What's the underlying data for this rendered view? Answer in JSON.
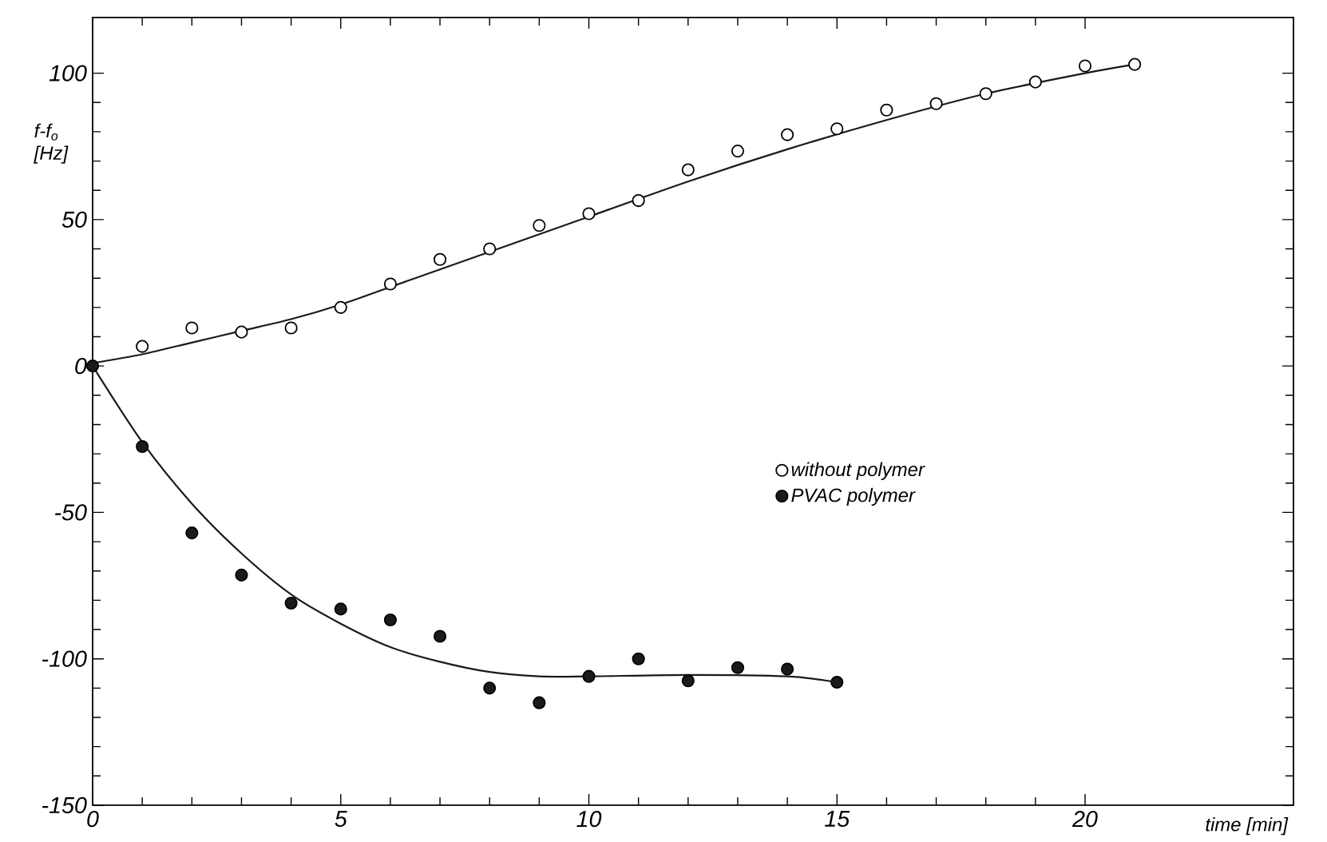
{
  "chart_data": {
    "type": "scatter",
    "xlabel": "time [min]",
    "ylabel": "f-f$_{o}$ [Hz]",
    "xlim": [
      0,
      24.2
    ],
    "ylim": [
      -150,
      119
    ],
    "xticks": [
      0,
      5,
      10,
      15,
      20
    ],
    "yticks": [
      -150,
      -100,
      -50,
      0,
      50,
      100
    ],
    "grid": false,
    "legend": "right",
    "series": [
      {
        "name": "without polymer",
        "color": "#ffffff",
        "marker": "circle",
        "x": [
          1,
          2,
          3,
          4,
          5,
          6,
          7,
          8,
          9,
          10,
          11,
          12,
          13,
          14,
          15,
          16,
          17,
          18,
          19,
          20,
          21
        ],
        "values": [
          6.7,
          13,
          11.6,
          13,
          20,
          28,
          36.4,
          40,
          48,
          52,
          56.5,
          67,
          73.4,
          79,
          81,
          87.4,
          89.6,
          93,
          97,
          102.5,
          103
        ]
      },
      {
        "name": "PVAC polymer",
        "color": "#1a1a1a",
        "marker": "circle",
        "x": [
          0,
          1,
          2,
          3,
          4,
          5,
          6,
          7,
          8,
          9,
          10,
          11,
          12,
          13,
          14,
          15
        ],
        "values": [
          0,
          -27.5,
          -57,
          -71.4,
          -81,
          -83,
          -86.7,
          -92.3,
          -110,
          -115,
          -106,
          -100,
          -107.5,
          -103,
          -103.5,
          -108
        ]
      },
      {
        "type": "line",
        "color": "#1a1a1a",
        "marker": "none",
        "x": [
          0,
          1,
          2,
          3,
          4,
          5,
          6,
          7,
          8,
          9,
          10,
          12,
          14,
          16,
          18,
          20,
          21
        ],
        "values": [
          1,
          4,
          8,
          12,
          16,
          21,
          27,
          33,
          39,
          45,
          51,
          63,
          74,
          84,
          93,
          100,
          103
        ]
      },
      {
        "type": "line",
        "color": "#1a1a1a",
        "marker": "none",
        "x": [
          0,
          1,
          2,
          3,
          4,
          5,
          6,
          7,
          8,
          9,
          10,
          12,
          14,
          15
        ],
        "values": [
          0,
          -26,
          -47,
          -64,
          -78,
          -88,
          -96,
          -101,
          -104.5,
          -106,
          -106,
          -105.5,
          -106,
          -108
        ]
      }
    ]
  }
}
